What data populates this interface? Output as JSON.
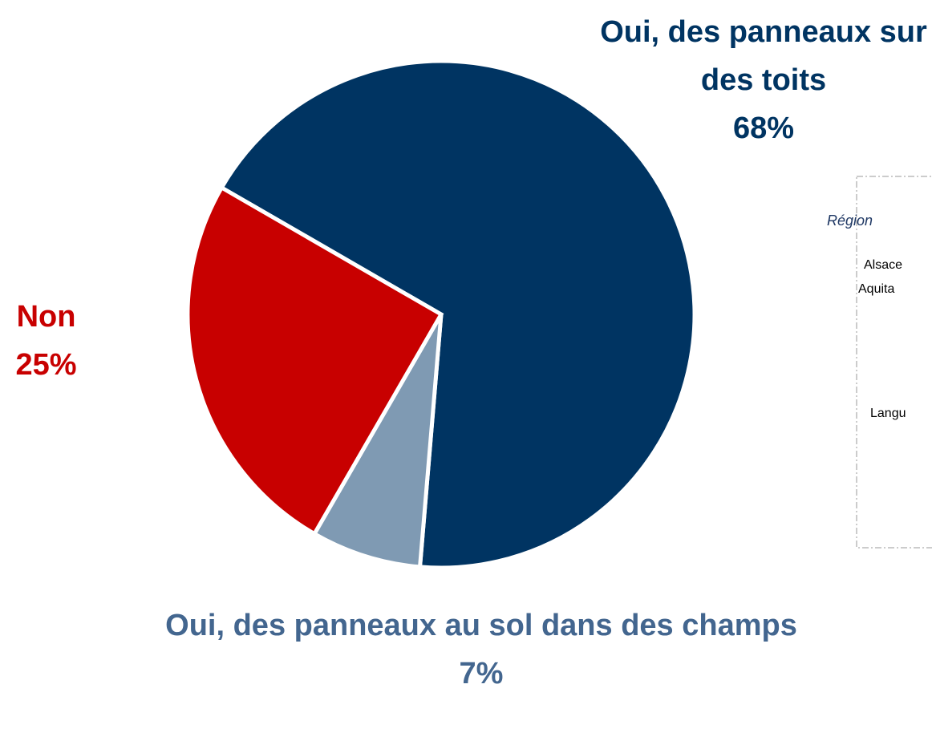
{
  "chart_data": {
    "type": "pie",
    "categories": [
      "Oui, des panneaux sur des toits",
      "Oui, des panneaux au sol dans des champs",
      "Non"
    ],
    "values": [
      68,
      7,
      25
    ],
    "value_labels": [
      "68%",
      "7%",
      "25%"
    ],
    "colors": [
      "#003462",
      "#7f9ab3",
      "#c80000"
    ],
    "label_colors": [
      "#003462",
      "#43668f",
      "#c80000"
    ]
  },
  "side_panel": {
    "title": "Région",
    "items": [
      "Alsace",
      "Aquita",
      "Langu"
    ]
  }
}
